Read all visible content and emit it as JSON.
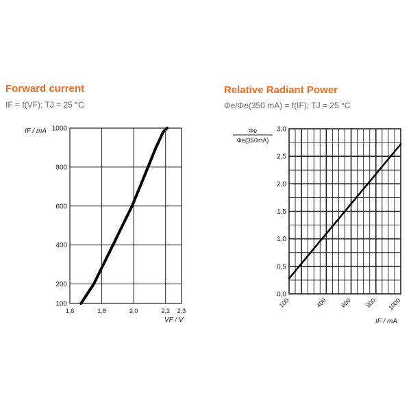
{
  "chart_data": [
    {
      "type": "line",
      "title": "Forward current",
      "subtitle": "IF = f(VF); TJ = 25 °C",
      "xlabel": "VF / V",
      "ylabel": "IF / mA",
      "xlim": [
        1.6,
        2.3
      ],
      "ylim": [
        100,
        1000
      ],
      "x_ticks": [
        1.6,
        1.8,
        2.0,
        2.2,
        2.3
      ],
      "x_tick_labels": [
        "1,6",
        "1,8",
        "2,0",
        "2,2",
        "2,3"
      ],
      "y_ticks": [
        100,
        200,
        400,
        600,
        800,
        1000
      ],
      "y_tick_labels": [
        "100",
        "200",
        "400",
        "600",
        "800",
        "1000"
      ],
      "grid": true,
      "series": [
        {
          "x": [
            1.67,
            1.75,
            1.81,
            1.87,
            1.93,
            1.99,
            2.04,
            2.09,
            2.14,
            2.185,
            2.21
          ],
          "y": [
            100,
            200,
            300,
            400,
            500,
            600,
            700,
            800,
            900,
            980,
            1000
          ]
        }
      ]
    },
    {
      "type": "line",
      "title": "Relative Radiant Power",
      "subtitle": "Φe/Φe(350 mA) = f(IF); TJ = 25 °C",
      "ylabel_num": "Φe",
      "ylabel_den": "Φe(350mA)",
      "xlabel": "IF / mA",
      "xlim": [
        100,
        1000
      ],
      "ylim": [
        0.0,
        3.0
      ],
      "x_ticks": [
        100,
        400,
        600,
        800,
        1000
      ],
      "x_tick_labels": [
        "100",
        "400",
        "600",
        "800",
        "1000"
      ],
      "y_ticks": [
        0.0,
        0.5,
        1.0,
        1.5,
        2.0,
        2.5,
        3.0
      ],
      "y_tick_labels": [
        "0,0",
        "0,5",
        "1,0",
        "1,5",
        "2,0",
        "2,5",
        "3,0"
      ],
      "grid": true,
      "series": [
        {
          "x": [
            100,
            1000
          ],
          "y": [
            0.28,
            2.72
          ]
        }
      ]
    }
  ]
}
